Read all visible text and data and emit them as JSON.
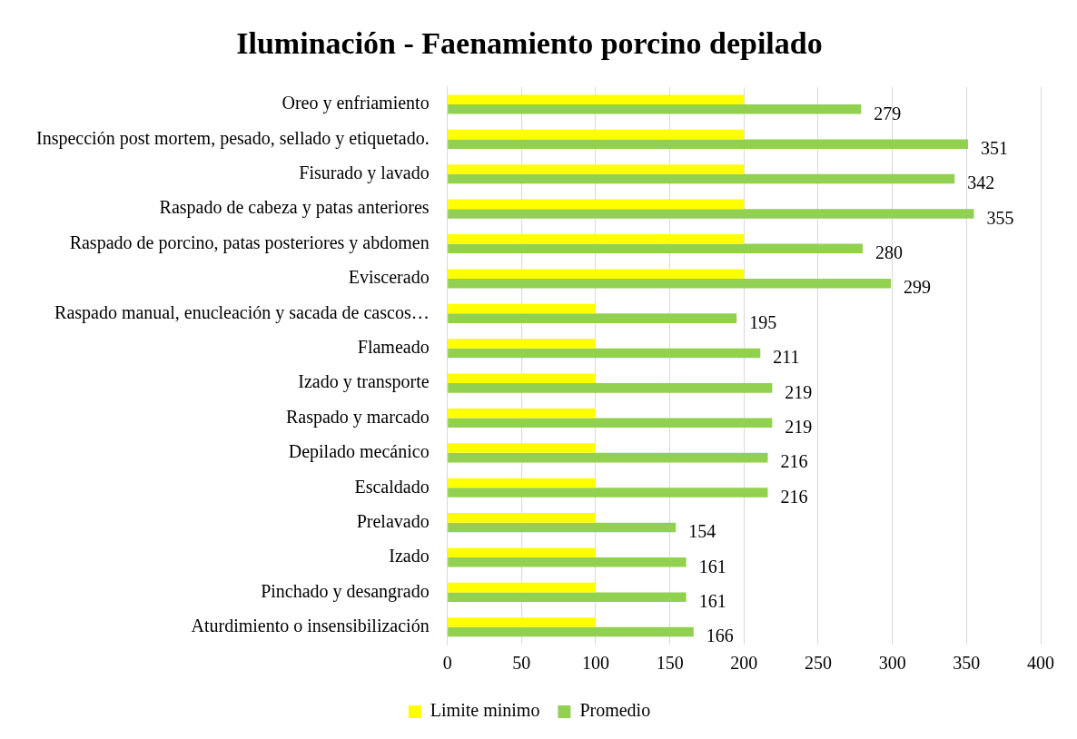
{
  "chart_data": {
    "type": "bar",
    "orientation": "horizontal",
    "title": "Iluminación - Faenamiento porcino depilado",
    "categories": [
      "Oreo y enfriamiento",
      "Inspección post mortem, pesado, sellado y etiquetado.",
      "Fisurado y lavado",
      "Raspado de cabeza y patas anteriores",
      "Raspado de porcino, patas posteriores y abdomen",
      "Eviscerado",
      "Raspado manual, enucleación y sacada de cascos…",
      "Flameado",
      "Izado y transporte",
      "Raspado y marcado",
      "Depilado mecánico",
      "Escaldado",
      "Prelavado",
      "Izado",
      "Pinchado y desangrado",
      "Aturdimiento o insensibilización"
    ],
    "series": [
      {
        "name": "Limite minimo",
        "color": "#ffff00",
        "values": [
          200,
          200,
          200,
          200,
          200,
          200,
          100,
          100,
          100,
          100,
          100,
          100,
          100,
          100,
          100,
          100
        ]
      },
      {
        "name": "Promedio",
        "color": "#92d050",
        "values": [
          279,
          351,
          342,
          355,
          280,
          299,
          195,
          211,
          219,
          219,
          216,
          216,
          154,
          161,
          161,
          166
        ],
        "value_labels": [
          "279",
          "351",
          "342",
          "355",
          "280",
          "299",
          "195",
          "211",
          "219",
          "219",
          "216",
          "216",
          "154",
          "161",
          "161",
          "166"
        ]
      }
    ],
    "xlim": [
      0,
      400
    ],
    "xticks": [
      0,
      50,
      100,
      150,
      200,
      250,
      300,
      350,
      400
    ],
    "grid": "x",
    "legend": "bottom"
  }
}
